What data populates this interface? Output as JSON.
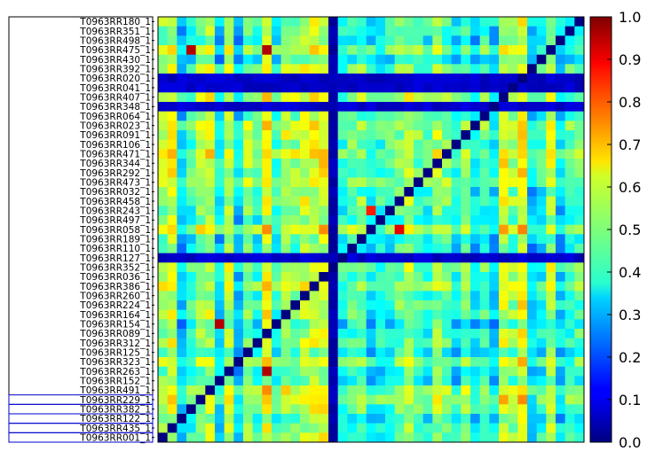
{
  "chart_data": {
    "type": "heatmap",
    "title": "",
    "xlabel": "",
    "ylabel": "",
    "colormap": "jet",
    "value_range": [
      0.0,
      1.0
    ],
    "row_labels": [
      "T0963RR180_1",
      "T0963RR351_1",
      "T0963RR498_1",
      "T0963RR475_1",
      "T0963RR430_1",
      "T0963RR392_1",
      "T0963RR020_1",
      "T0963RR041_1",
      "T0963RR407_1",
      "T0963RR348_1",
      "T0963RR064_1",
      "T0963RR023_1",
      "T0963RR091_1",
      "T0963RR106_1",
      "T0963RR471_1",
      "T0963RR344_1",
      "T0963RR292_1",
      "T0963RR473_1",
      "T0963RR032_1",
      "T0963RR458_1",
      "T0963RR243_1",
      "T0963RR497_1",
      "T0963RR058_1",
      "T0963RR189_1",
      "T0963RR110_1",
      "T0963RR127_1",
      "T0963RR352_1",
      "T0963RR036_1",
      "T0963RR386_1",
      "T0963RR260_1",
      "T0963RR224_1",
      "T0963RR164_1",
      "T0963RR154_1",
      "T0963RR089_1",
      "T0963RR312_1",
      "T0963RR125_1",
      "T0963RR323_1",
      "T0963RR263_1",
      "T0963RR152_1",
      "T0963RR491_1",
      "T0963RR229_1",
      "T0963RR382_1",
      "T0963RR122_1",
      "T0963RR435_1",
      "T0963RR001_1"
    ],
    "highlighted_rows": [
      "T0963RR229_1",
      "T0963RR382_1",
      "T0963RR122_1",
      "T0963RR435_1",
      "T0963RR001_1"
    ],
    "diagonal_value": 0.0,
    "low_similarity_rows": [
      "T0963RR020_1",
      "T0963RR041_1",
      "T0963RR348_1",
      "T0963RR127_1"
    ],
    "low_similarity_columns": [
      18
    ],
    "high_value_pairs": [
      {
        "row": "T0963RR475_1",
        "col": 3,
        "value": 0.95
      },
      {
        "row": "T0963RR475_1",
        "col": 11,
        "value": 0.95
      },
      {
        "row": "T0963RR154_1",
        "col": 6,
        "value": 0.95
      },
      {
        "row": "T0963RR263_1",
        "col": 11,
        "value": 0.95
      },
      {
        "row": "T0963RR243_1",
        "col": 22,
        "value": 0.85
      },
      {
        "row": "T0963RR058_1",
        "col": 25,
        "value": 0.9
      }
    ],
    "colorbar": {
      "ticks": [
        "0.0",
        "0.1",
        "0.2",
        "0.3",
        "0.4",
        "0.5",
        "0.6",
        "0.7",
        "0.8",
        "0.9",
        "1.0"
      ],
      "min": 0.0,
      "max": 1.0
    }
  }
}
